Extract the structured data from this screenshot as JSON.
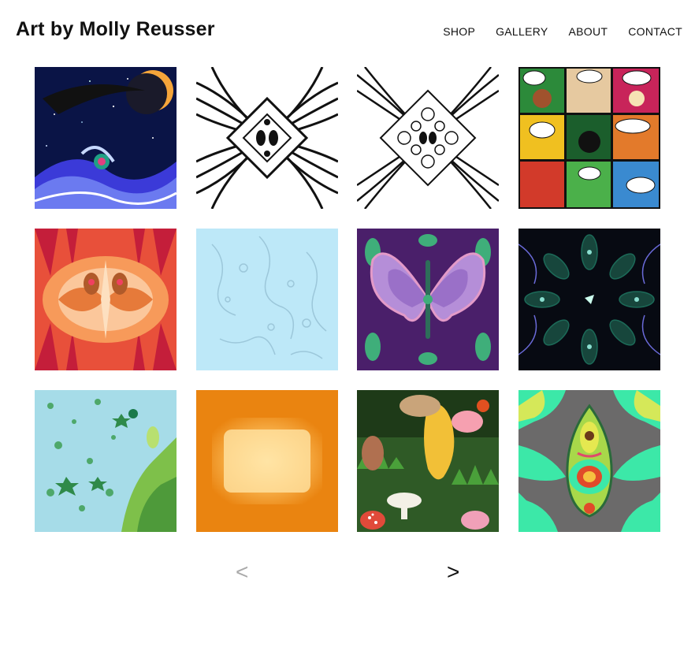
{
  "site": {
    "title": "Art by Molly Reusser"
  },
  "nav": {
    "items": [
      "SHOP",
      "GALLERY",
      "ABOUT",
      "CONTACT"
    ]
  },
  "gallery": {
    "tiles": [
      {
        "name": "tile-cosmic-river"
      },
      {
        "name": "tile-bw-kaleidoscope-1"
      },
      {
        "name": "tile-bw-kaleidoscope-2"
      },
      {
        "name": "tile-comic-strip"
      },
      {
        "name": "tile-orange-symmetric"
      },
      {
        "name": "tile-light-blue-doodle"
      },
      {
        "name": "tile-purple-butterfly"
      },
      {
        "name": "tile-dark-radial"
      },
      {
        "name": "tile-green-cells"
      },
      {
        "name": "tile-orange-glow"
      },
      {
        "name": "tile-mushroom-forest"
      },
      {
        "name": "tile-avocado-symmetric"
      }
    ]
  },
  "pager": {
    "prev": "<",
    "next": ">"
  },
  "colors": {
    "text": "#111111",
    "pager_disabled": "#aaaaaa",
    "background": "#ffffff"
  }
}
